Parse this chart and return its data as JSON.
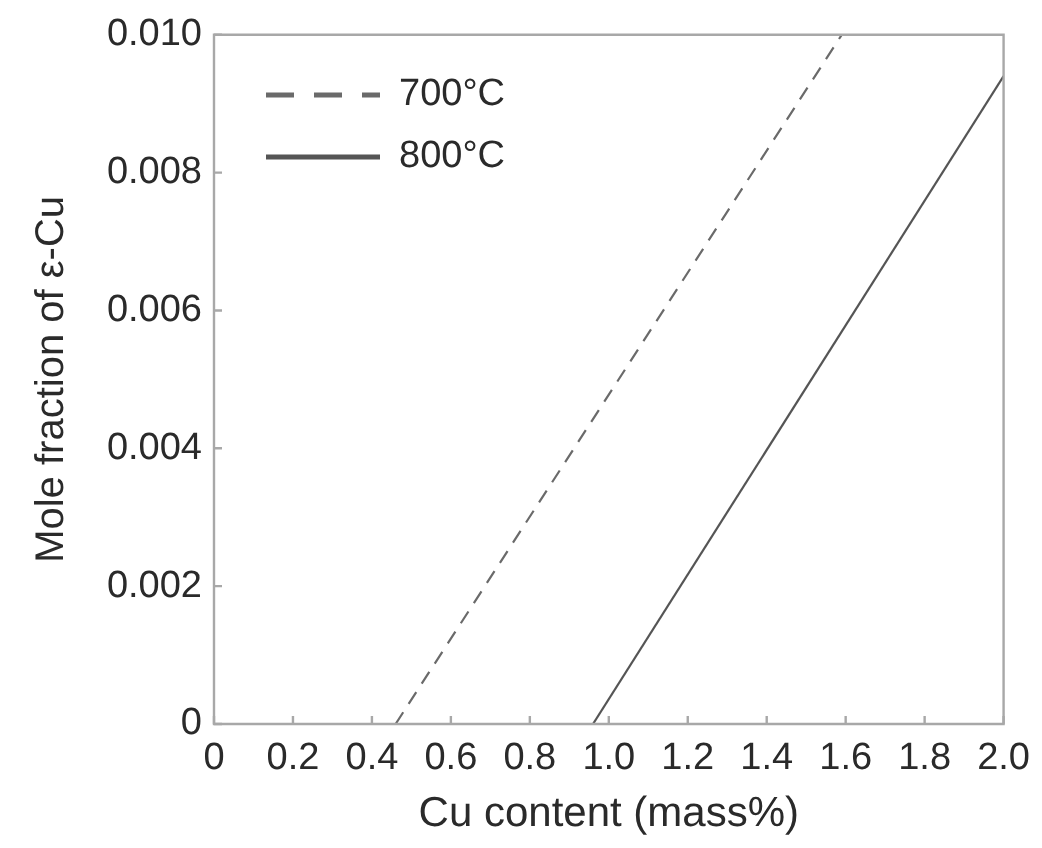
{
  "chart_data": {
    "type": "line",
    "xlabel": "Cu content (mass%)",
    "ylabel": "Mole fraction of ε-Cu",
    "series": [
      {
        "name": "700°C",
        "color": "#6a6a6a",
        "line_style": "dashed",
        "x": [
          0.46,
          1.59
        ],
        "values": [
          0,
          0.01
        ]
      },
      {
        "name": "800°C",
        "color": "#555555",
        "line_style": "solid",
        "x": [
          0.96,
          2.0
        ],
        "values": [
          0,
          0.0094
        ]
      }
    ],
    "xlim": [
      0,
      2
    ],
    "xticks": [
      0,
      0.2,
      0.4,
      0.6,
      0.8,
      {
        "value": 1,
        "label": "1.0"
      },
      1.2,
      1.4,
      1.6,
      1.8,
      {
        "value": 2,
        "label": "2.0"
      }
    ],
    "ylim": [
      0,
      0.01
    ],
    "yticks": [
      0,
      0.002,
      0.004,
      0.006,
      0.008,
      {
        "value": 0.01,
        "label": "0.010"
      }
    ],
    "legend": "top left",
    "marker": "none"
  }
}
